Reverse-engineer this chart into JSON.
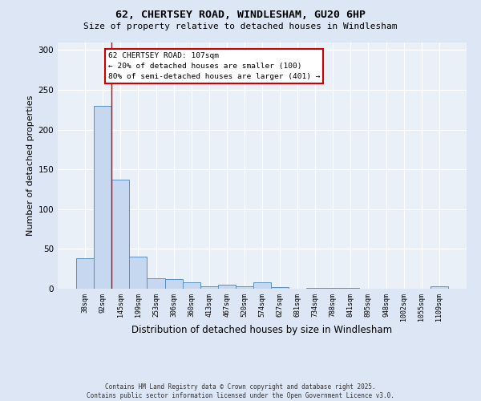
{
  "title_line1": "62, CHERTSEY ROAD, WINDLESHAM, GU20 6HP",
  "title_line2": "Size of property relative to detached houses in Windlesham",
  "xlabel": "Distribution of detached houses by size in Windlesham",
  "ylabel": "Number of detached properties",
  "categories": [
    "38sqm",
    "92sqm",
    "145sqm",
    "199sqm",
    "253sqm",
    "306sqm",
    "360sqm",
    "413sqm",
    "467sqm",
    "520sqm",
    "574sqm",
    "627sqm",
    "681sqm",
    "734sqm",
    "788sqm",
    "841sqm",
    "895sqm",
    "948sqm",
    "1002sqm",
    "1055sqm",
    "1109sqm"
  ],
  "values": [
    38,
    230,
    137,
    40,
    13,
    12,
    8,
    3,
    5,
    3,
    8,
    2,
    0,
    1,
    1,
    1,
    0,
    0,
    0,
    0,
    3
  ],
  "bar_color": "#c5d8f0",
  "bar_edge_color": "#5a8fc0",
  "red_line_x": 1.5,
  "annotation_title": "62 CHERTSEY ROAD: 107sqm",
  "annotation_line2": "← 20% of detached houses are smaller (100)",
  "annotation_line3": "80% of semi-detached houses are larger (401) →",
  "annotation_box_color": "#ffffff",
  "annotation_box_edge_color": "#cc0000",
  "ylim": [
    0,
    310
  ],
  "yticks": [
    0,
    50,
    100,
    150,
    200,
    250,
    300
  ],
  "footer_line1": "Contains HM Land Registry data © Crown copyright and database right 2025.",
  "footer_line2": "Contains public sector information licensed under the Open Government Licence v3.0.",
  "bg_color": "#dce6f5",
  "plot_bg_color": "#eaf0f8"
}
